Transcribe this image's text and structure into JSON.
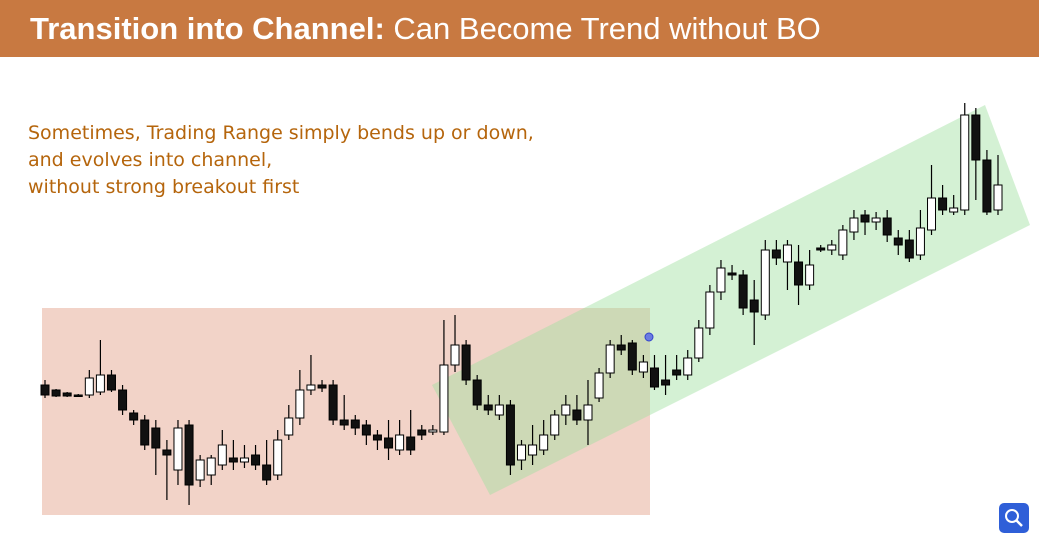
{
  "header": {
    "title_bold": "Transition into Channel:",
    "title_rest": "Can Become Trend without BO"
  },
  "notes": [
    "Sometimes, Trading Range simply bends up or down,",
    "and evolves into channel,",
    "without strong breakout first"
  ],
  "chart_data": {
    "type": "candlestick",
    "ylim": [
      30,
      450
    ],
    "series": [
      {
        "open": [
          155,
          150,
          147,
          145,
          145,
          148,
          165,
          150,
          127,
          120,
          112,
          90,
          70,
          115,
          60,
          65,
          75,
          82,
          78,
          85,
          75,
          65,
          105,
          122,
          150,
          155,
          155,
          120,
          120,
          115,
          105,
          102,
          90,
          103,
          110,
          108,
          108,
          175,
          195,
          160,
          135,
          125,
          135,
          80,
          85,
          90,
          105,
          125,
          130,
          120,
          142,
          167,
          195,
          197,
          168,
          172,
          160,
          170,
          165,
          182,
          212,
          248,
          267,
          265,
          240,
          225,
          290,
          278,
          278,
          255,
          292,
          290,
          285,
          308,
          325,
          318,
          322,
          302,
          300,
          285,
          310,
          342,
          328,
          330,
          425,
          380,
          330
        ],
        "high": [
          160,
          151,
          148,
          146,
          170,
          200,
          170,
          155,
          130,
          125,
          120,
          100,
          120,
          120,
          85,
          85,
          110,
          100,
          95,
          95,
          100,
          110,
          135,
          170,
          185,
          160,
          160,
          145,
          125,
          120,
          110,
          120,
          120,
          130,
          115,
          115,
          220,
          225,
          200,
          165,
          145,
          145,
          140,
          100,
          115,
          120,
          130,
          145,
          145,
          160,
          172,
          200,
          205,
          200,
          185,
          185,
          185,
          185,
          190,
          220,
          255,
          280,
          275,
          270,
          260,
          300,
          300,
          300,
          295,
          290,
          295,
          300,
          315,
          330,
          330,
          328,
          330,
          310,
          310,
          330,
          375,
          355,
          345,
          437,
          432,
          390,
          385
        ],
        "low": [
          142,
          143,
          143,
          143,
          142,
          145,
          148,
          125,
          115,
          90,
          65,
          40,
          55,
          35,
          53,
          55,
          70,
          70,
          72,
          70,
          55,
          60,
          100,
          115,
          145,
          148,
          115,
          110,
          105,
          95,
          90,
          80,
          85,
          85,
          100,
          105,
          105,
          168,
          155,
          130,
          125,
          120,
          65,
          70,
          75,
          85,
          100,
          115,
          115,
          95,
          138,
          162,
          185,
          165,
          162,
          150,
          145,
          160,
          160,
          178,
          205,
          240,
          260,
          225,
          195,
          220,
          275,
          250,
          235,
          250,
          288,
          285,
          280,
          300,
          305,
          310,
          298,
          285,
          278,
          280,
          305,
          325,
          325,
          325,
          340,
          325,
          325
        ],
        "close": [
          145,
          144,
          144,
          144,
          162,
          165,
          150,
          130,
          120,
          95,
          92,
          85,
          112,
          55,
          80,
          82,
          95,
          78,
          82,
          75,
          60,
          100,
          122,
          150,
          155,
          152,
          120,
          115,
          112,
          105,
          100,
          92,
          105,
          90,
          105,
          110,
          175,
          195,
          160,
          135,
          130,
          135,
          75,
          95,
          95,
          105,
          125,
          135,
          120,
          135,
          167,
          195,
          190,
          170,
          178,
          153,
          155,
          165,
          182,
          212,
          248,
          272,
          265,
          232,
          228,
          290,
          282,
          295,
          255,
          275,
          290,
          295,
          310,
          322,
          318,
          322,
          305,
          295,
          282,
          312,
          342,
          330,
          332,
          425,
          380,
          328,
          355
        ]
      }
    ]
  }
}
